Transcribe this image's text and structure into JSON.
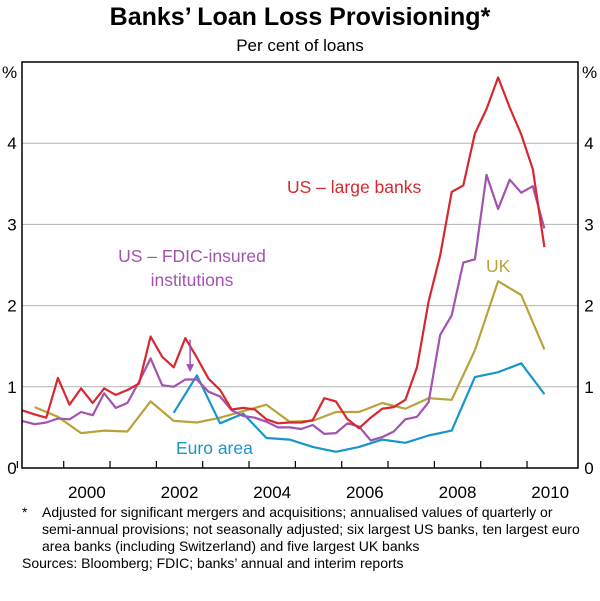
{
  "chart_data": {
    "type": "line",
    "title": "Banks’ Loan Loss Provisioning*",
    "subtitle": "Per cent of loans",
    "ylabel_left": "%",
    "ylabel_right": "%",
    "ylim": [
      0,
      5
    ],
    "yticks": [
      0,
      1,
      2,
      3,
      4
    ],
    "ytick_labels": [
      "0",
      "1",
      "2",
      "3",
      "4"
    ],
    "xlim": [
      1998.6,
      2010.6
    ],
    "xticks": [
      1998.5,
      1999.5,
      2000.5,
      2001.5,
      2002.5,
      2003.5,
      2004.5,
      2005.5,
      2006.5,
      2007.5,
      2008.5,
      2009.5
    ],
    "xtick_labels": [
      {
        "label": "2000",
        "x": 2000
      },
      {
        "label": "2002",
        "x": 2002
      },
      {
        "label": "2004",
        "x": 2004
      },
      {
        "label": "2006",
        "x": 2006
      },
      {
        "label": "2008",
        "x": 2008
      },
      {
        "label": "2010",
        "x": 2010
      }
    ],
    "series": [
      {
        "name": "US – large banks",
        "color": "#d7282f",
        "x": [
          1998.6,
          1998.875,
          1999.125,
          1999.375,
          1999.625,
          1999.875,
          2000.125,
          2000.375,
          2000.625,
          2000.875,
          2001.125,
          2001.375,
          2001.625,
          2001.875,
          2002.125,
          2002.375,
          2002.625,
          2002.875,
          2003.125,
          2003.375,
          2003.625,
          2003.875,
          2004.125,
          2004.375,
          2004.625,
          2004.875,
          2005.125,
          2005.375,
          2005.625,
          2005.875,
          2006.125,
          2006.375,
          2006.625,
          2006.875,
          2007.125,
          2007.375,
          2007.625,
          2007.875,
          2008.125,
          2008.375,
          2008.625,
          2008.875,
          2009.125,
          2009.375,
          2009.625,
          2009.875,
          2010.125
        ],
        "values": [
          0.71,
          0.66,
          0.62,
          1.11,
          0.78,
          0.98,
          0.8,
          0.98,
          0.9,
          0.96,
          1.04,
          1.62,
          1.37,
          1.24,
          1.6,
          1.36,
          1.1,
          0.96,
          0.72,
          0.74,
          0.72,
          0.6,
          0.55,
          0.56,
          0.56,
          0.59,
          0.86,
          0.82,
          0.6,
          0.49,
          0.62,
          0.73,
          0.75,
          0.84,
          1.24,
          2.05,
          2.62,
          3.4,
          3.48,
          4.12,
          4.42,
          4.81,
          4.44,
          4.11,
          3.68,
          2.72,
          null
        ]
      },
      {
        "name": "US – FDIC-insured institutions",
        "color": "#a253b0",
        "x": [
          1998.6,
          1998.875,
          1999.125,
          1999.375,
          1999.625,
          1999.875,
          2000.125,
          2000.375,
          2000.625,
          2000.875,
          2001.125,
          2001.375,
          2001.625,
          2001.875,
          2002.125,
          2002.375,
          2002.625,
          2002.875,
          2003.125,
          2003.375,
          2003.625,
          2003.875,
          2004.125,
          2004.375,
          2004.625,
          2004.875,
          2005.125,
          2005.375,
          2005.625,
          2005.875,
          2006.125,
          2006.375,
          2006.625,
          2006.875,
          2007.125,
          2007.375,
          2007.625,
          2007.875,
          2008.125,
          2008.375,
          2008.625,
          2008.875,
          2009.125,
          2009.375,
          2009.625,
          2009.875
        ],
        "values": [
          0.58,
          0.54,
          0.56,
          0.61,
          0.6,
          0.69,
          0.65,
          0.92,
          0.74,
          0.8,
          1.06,
          1.35,
          1.02,
          1.0,
          1.09,
          1.09,
          0.94,
          0.88,
          0.71,
          0.64,
          0.62,
          0.57,
          0.5,
          0.5,
          0.48,
          0.53,
          0.42,
          0.43,
          0.55,
          0.51,
          0.34,
          0.38,
          0.45,
          0.6,
          0.63,
          0.81,
          1.64,
          1.88,
          2.53,
          2.57,
          3.61,
          3.19,
          3.55,
          3.39,
          3.47,
          2.95
        ]
      },
      {
        "name": "UK",
        "color": "#b8a33a",
        "x": [
          1998.875,
          1999.375,
          1999.875,
          2000.375,
          2000.875,
          2001.375,
          2001.875,
          2002.375,
          2002.875,
          2003.375,
          2003.875,
          2004.375,
          2004.875,
          2005.375,
          2005.875,
          2006.375,
          2006.875,
          2007.375,
          2007.875,
          2008.375,
          2008.875,
          2009.375,
          2009.875
        ],
        "values": [
          0.75,
          0.63,
          0.43,
          0.46,
          0.45,
          0.82,
          0.58,
          0.56,
          0.62,
          0.7,
          0.78,
          0.57,
          0.58,
          0.69,
          0.69,
          0.8,
          0.73,
          0.86,
          0.84,
          1.45,
          2.3,
          2.13,
          1.46
        ]
      },
      {
        "name": "Euro area",
        "color": "#1996c9",
        "x": [
          2001.875,
          2002.375,
          2002.875,
          2003.375,
          2003.875,
          2004.375,
          2004.875,
          2005.375,
          2005.875,
          2006.375,
          2006.875,
          2007.375,
          2007.875,
          2008.375,
          2008.875,
          2009.375,
          2009.875
        ],
        "values": [
          0.68,
          1.14,
          0.55,
          0.67,
          0.37,
          0.35,
          0.26,
          0.2,
          0.26,
          0.35,
          0.31,
          0.4,
          0.46,
          1.12,
          1.18,
          1.29,
          0.91
        ]
      }
    ],
    "series_labels": [
      {
        "text": "US – large banks",
        "color": "#d7282f"
      },
      {
        "text": "US – FDIC-insured",
        "color": "#a253b0"
      },
      {
        "text": "institutions",
        "color": "#a253b0"
      },
      {
        "text": "UK",
        "color": "#b8a33a"
      },
      {
        "text": "Euro area",
        "color": "#1996c9"
      }
    ],
    "annotation_arrow": {
      "series": "US – FDIC-insured institutions",
      "x_from": 2002.25,
      "y_from": 1.58,
      "x_to": 2002.25,
      "y_to": 1.18
    }
  },
  "notes": {
    "footnote_mark": "*",
    "footnote_text": "Adjusted for significant mergers and acquisitions; annualised values of quarterly or semi-annual provisions; not seasonally adjusted; six largest US banks, ten largest euro area banks (including Switzerland) and five largest UK banks",
    "sources": "Sources: Bloomberg; FDIC; banks’ annual and interim reports"
  }
}
